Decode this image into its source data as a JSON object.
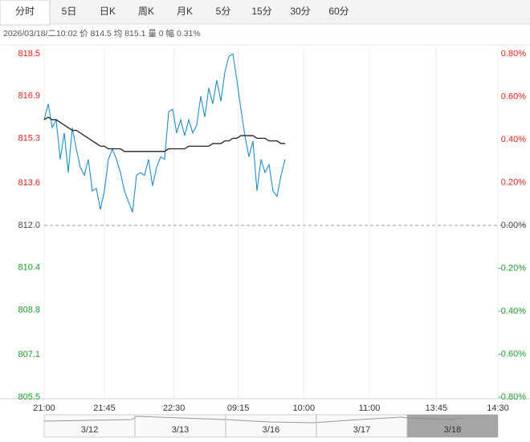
{
  "tabs": [
    "分时",
    "5日",
    "日K",
    "周K",
    "月K",
    "5分",
    "15分",
    "30分",
    "60分"
  ],
  "active_tab": 0,
  "info": "2026/03/18/二10:02  价 814.5  均 815.1  量 0  幅 0.31%",
  "chart_data": {
    "type": "line",
    "x": [
      0,
      3,
      6,
      9,
      12,
      15,
      18,
      21,
      24,
      27,
      30,
      33,
      36,
      39,
      42,
      45,
      48,
      51,
      54,
      57,
      60,
      63,
      66,
      69,
      72,
      75,
      78,
      81,
      84,
      87,
      90,
      93,
      96,
      99,
      102,
      105,
      108,
      111,
      114,
      117,
      120,
      123,
      126,
      129,
      132,
      135,
      138,
      141,
      144,
      147,
      150,
      153,
      156,
      159,
      162,
      165,
      168,
      171,
      174,
      177,
      180
    ],
    "series": [
      {
        "name": "价",
        "color": "#1f8dc9",
        "values": [
          816.0,
          816.6,
          815.7,
          816.0,
          814.5,
          815.5,
          814.0,
          815.7,
          814.9,
          814.2,
          813.9,
          814.5,
          813.3,
          813.4,
          812.6,
          813.3,
          814.5,
          814.9,
          814.5,
          814.0,
          813.3,
          812.9,
          812.5,
          813.9,
          814.0,
          813.9,
          814.5,
          813.5,
          814.2,
          814.6,
          814.5,
          816.3,
          816.4,
          815.5,
          816.0,
          815.4,
          816.0,
          815.5,
          815.8,
          816.9,
          816.1,
          817.2,
          816.6,
          817.5,
          816.7,
          817.8,
          818.4,
          818.5,
          817.5,
          816.4,
          815.4,
          814.6,
          815.2,
          813.3,
          814.5,
          814.0,
          814.3,
          813.3,
          813.1,
          813.9,
          814.5
        ]
      },
      {
        "name": "均",
        "color": "#222222",
        "values": [
          816.0,
          816.1,
          816.0,
          816.0,
          815.9,
          815.8,
          815.7,
          815.6,
          815.6,
          815.5,
          815.4,
          815.3,
          815.2,
          815.1,
          815.0,
          815.0,
          814.9,
          814.9,
          814.9,
          814.9,
          814.8,
          814.8,
          814.8,
          814.8,
          814.8,
          814.8,
          814.8,
          814.8,
          814.8,
          814.8,
          814.8,
          814.9,
          814.9,
          814.9,
          814.9,
          814.9,
          815.0,
          815.0,
          815.0,
          815.0,
          815.0,
          815.0,
          815.1,
          815.1,
          815.1,
          815.2,
          815.2,
          815.3,
          815.3,
          815.4,
          815.4,
          815.4,
          815.4,
          815.3,
          815.3,
          815.3,
          815.2,
          815.2,
          815.2,
          815.1,
          815.1
        ]
      }
    ],
    "xlim": [
      0,
      339
    ],
    "xticks": [
      {
        "value": 0,
        "label": "21:00"
      },
      {
        "value": 45,
        "label": "21:45"
      },
      {
        "value": 97,
        "label": "22:30"
      },
      {
        "value": 145,
        "label": "09:15"
      },
      {
        "value": 194,
        "label": "10:00"
      },
      {
        "value": 243,
        "label": "11:00"
      },
      {
        "value": 293,
        "label": "13:45"
      },
      {
        "value": 339,
        "label": "14:30"
      }
    ],
    "ylim": [
      805.5,
      818.5
    ],
    "yticks": [
      818.5,
      816.9,
      815.3,
      813.6,
      {
        "value": 812,
        "label": "812.0"
      },
      810.4,
      808.8,
      807.1,
      805.5
    ],
    "y2lim": [
      -0.8,
      0.8
    ],
    "y2ticks": [
      {
        "value": 0.8,
        "label": "0.80%"
      },
      {
        "value": 0.6,
        "label": "0.60%"
      },
      {
        "value": 0.4,
        "label": "0.40%"
      },
      {
        "value": 0.2,
        "label": "0.20%"
      },
      {
        "value": 0,
        "label": "0.00%"
      },
      {
        "value": -0.2,
        "label": "-0.20%"
      },
      {
        "value": -0.4,
        "label": "-0.40%"
      },
      {
        "value": -0.6,
        "label": "-0.60%"
      },
      {
        "value": -0.8,
        "label": "-0.80%"
      }
    ],
    "base_line": 812,
    "up_color": "#e0201a",
    "down_color": "#1a9a2a",
    "flat_color": "#444444",
    "grid": true
  },
  "navigator": {
    "dates": [
      "3/12",
      "3/13",
      "3/16",
      "3/17",
      "3/18"
    ],
    "selected": 4
  }
}
